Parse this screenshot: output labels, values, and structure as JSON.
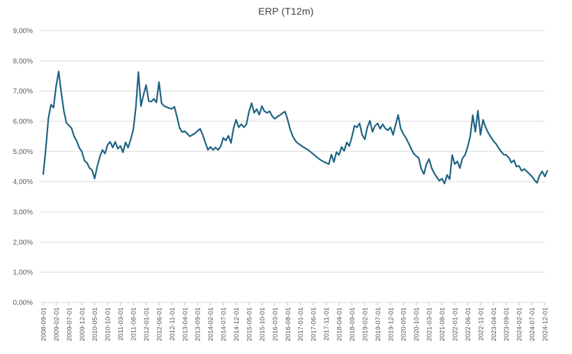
{
  "chart_data": {
    "type": "line",
    "title": "ERP (T12m)",
    "series_name": "ERP (T12m)",
    "x_start_month": "2008-09-01",
    "x_frequency": "monthly",
    "x_tick_labels": [
      "2008-09-01",
      "2009-02-01",
      "2009-07-01",
      "2009-12-01",
      "2010-05-01",
      "2010-10-01",
      "2011-03-01",
      "2011-08-01",
      "2012-01-01",
      "2012-06-01",
      "2012-11-01",
      "2013-04-01",
      "2013-09-01",
      "2014-02-01",
      "2014-07-01",
      "2014-12-01",
      "2015-05-01",
      "2015-10-01",
      "2016-03-01",
      "2016-08-01",
      "2017-01-01",
      "2017-06-01",
      "2017-11-01",
      "2018-04-01",
      "2018-09-01",
      "2019-02-01",
      "2019-07-01",
      "2019-12-01",
      "2020-05-01",
      "2020-10-01",
      "2021-03-01",
      "2021-08-01",
      "2022-01-01",
      "2022-06-01",
      "2022-11-01",
      "2023-04-01",
      "2023-09-01",
      "2024-02-01",
      "2024-07-01",
      "2024-12-01"
    ],
    "x_tick_every_n_months": 5,
    "y_tick_labels": [
      "9,00%",
      "8,00%",
      "7,00%",
      "6,00%",
      "5,00%",
      "4,00%",
      "3,00%",
      "2,00%",
      "1,00%",
      "0,00%"
    ],
    "y_tick_values": [
      9,
      8,
      7,
      6,
      5,
      4,
      3,
      2,
      1,
      0
    ],
    "ylim": [
      0,
      9
    ],
    "grid": true,
    "legend_position": "none",
    "line_color": "#1e6383",
    "grid_color": "#d9d9d9",
    "axis_color": "#c0c0c0",
    "tick_text_color": "#595959",
    "title_color": "#404040",
    "values_unit": "percent",
    "values": [
      4.25,
      5.1,
      6.1,
      6.55,
      6.45,
      7.15,
      7.65,
      6.95,
      6.35,
      5.95,
      5.86,
      5.77,
      5.5,
      5.35,
      5.12,
      5.0,
      4.7,
      4.62,
      4.45,
      4.38,
      4.1,
      4.5,
      4.82,
      5.05,
      4.93,
      5.22,
      5.32,
      5.13,
      5.32,
      5.09,
      5.18,
      4.97,
      5.3,
      5.13,
      5.4,
      5.72,
      6.45,
      7.63,
      6.5,
      6.88,
      7.2,
      6.67,
      6.65,
      6.74,
      6.62,
      7.3,
      6.6,
      6.5,
      6.47,
      6.43,
      6.41,
      6.48,
      6.15,
      5.78,
      5.64,
      5.67,
      5.59,
      5.5,
      5.55,
      5.6,
      5.68,
      5.75,
      5.55,
      5.3,
      5.05,
      5.15,
      5.05,
      5.13,
      5.05,
      5.17,
      5.45,
      5.36,
      5.52,
      5.28,
      5.78,
      6.05,
      5.8,
      5.9,
      5.8,
      5.9,
      6.32,
      6.6,
      6.28,
      6.4,
      6.22,
      6.5,
      6.33,
      6.28,
      6.33,
      6.17,
      6.08,
      6.15,
      6.2,
      6.27,
      6.32,
      6.06,
      5.73,
      5.5,
      5.36,
      5.27,
      5.21,
      5.15,
      5.1,
      5.05,
      4.98,
      4.91,
      4.84,
      4.77,
      4.71,
      4.66,
      4.62,
      4.58,
      4.9,
      4.65,
      4.98,
      4.88,
      5.15,
      5.02,
      5.3,
      5.18,
      5.48,
      5.85,
      5.8,
      5.93,
      5.55,
      5.4,
      5.8,
      6.02,
      5.65,
      5.85,
      5.93,
      5.75,
      5.9,
      5.76,
      5.7,
      5.8,
      5.55,
      5.88,
      6.21,
      5.75,
      5.58,
      5.45,
      5.28,
      5.1,
      4.93,
      4.85,
      4.78,
      4.42,
      4.25,
      4.58,
      4.75,
      4.45,
      4.28,
      4.15,
      4.03,
      4.1,
      3.94,
      4.22,
      4.08,
      4.88,
      4.58,
      4.67,
      4.45,
      4.78,
      4.88,
      5.15,
      5.5,
      6.2,
      5.65,
      6.35,
      5.55,
      6.05,
      5.8,
      5.62,
      5.48,
      5.35,
      5.26,
      5.12,
      5.0,
      4.9,
      4.88,
      4.8,
      4.63,
      4.71,
      4.5,
      4.52,
      4.36,
      4.42,
      4.34,
      4.26,
      4.17,
      4.05,
      3.96,
      4.21,
      4.34,
      4.17,
      4.36
    ]
  }
}
